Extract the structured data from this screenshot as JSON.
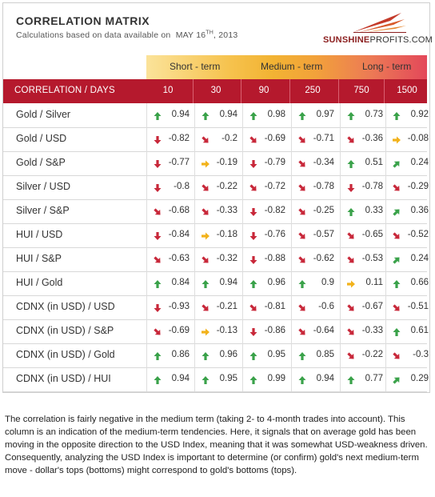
{
  "header": {
    "title": "CORRELATION MATRIX",
    "subtitle_prefix": "Calculations based on data available on",
    "date_month_day": "MAY 16",
    "date_suffix": "TH",
    "date_year": ", 2013"
  },
  "logo": {
    "brand_bold": "SUNSHINE",
    "brand_thin": "PROFITS.COM"
  },
  "terms": {
    "short": "Short - term",
    "medium": "Medium - term",
    "long": "Long - term"
  },
  "columns": {
    "label": "CORRELATION / DAYS",
    "days": [
      "10",
      "30",
      "90",
      "250",
      "750",
      "1500"
    ]
  },
  "colors": {
    "up": "#3aa24a",
    "down": "#c8283a",
    "flat": "#f2b21b",
    "header_bg": "#b5192d"
  },
  "chart_data": {
    "type": "table",
    "title": "CORRELATION MATRIX",
    "columns": [
      "10",
      "30",
      "90",
      "250",
      "750",
      "1500"
    ],
    "rows": [
      {
        "label": "Gold / Silver",
        "values": [
          "0.94",
          "0.94",
          "0.98",
          "0.97",
          "0.73",
          "0.92"
        ],
        "arrows": [
          "up",
          "up",
          "up",
          "up",
          "up",
          "up"
        ]
      },
      {
        "label": "Gold / USD",
        "values": [
          "-0.82",
          "-0.2",
          "-0.69",
          "-0.71",
          "-0.36",
          "-0.08"
        ],
        "arrows": [
          "down",
          "down-right",
          "down-right",
          "down-right",
          "down-right",
          "flat"
        ]
      },
      {
        "label": "Gold / S&P",
        "values": [
          "-0.77",
          "-0.19",
          "-0.79",
          "-0.34",
          "0.51",
          "0.24"
        ],
        "arrows": [
          "down",
          "flat",
          "down",
          "down-right",
          "up",
          "up-right"
        ]
      },
      {
        "label": "Silver / USD",
        "values": [
          "-0.8",
          "-0.22",
          "-0.72",
          "-0.78",
          "-0.78",
          "-0.29"
        ],
        "arrows": [
          "down",
          "down-right",
          "down-right",
          "down-right",
          "down",
          "down-right"
        ]
      },
      {
        "label": "Silver / S&P",
        "values": [
          "-0.68",
          "-0.33",
          "-0.82",
          "-0.25",
          "0.33",
          "0.36"
        ],
        "arrows": [
          "down-right",
          "down-right",
          "down",
          "down-right",
          "up",
          "up-right"
        ]
      },
      {
        "label": "HUI / USD",
        "values": [
          "-0.84",
          "-0.18",
          "-0.76",
          "-0.57",
          "-0.65",
          "-0.52"
        ],
        "arrows": [
          "down",
          "flat",
          "down",
          "down-right",
          "down-right",
          "down-right"
        ]
      },
      {
        "label": "HUI / S&P",
        "values": [
          "-0.63",
          "-0.32",
          "-0.88",
          "-0.62",
          "-0.53",
          "0.24"
        ],
        "arrows": [
          "down-right",
          "down-right",
          "down",
          "down-right",
          "down-right",
          "up-right"
        ]
      },
      {
        "label": "HUI / Gold",
        "values": [
          "0.84",
          "0.94",
          "0.96",
          "0.9",
          "0.11",
          "0.66"
        ],
        "arrows": [
          "up",
          "up",
          "up",
          "up",
          "flat",
          "up"
        ]
      },
      {
        "label": "CDNX (in USD) / USD",
        "values": [
          "-0.93",
          "-0.21",
          "-0.81",
          "-0.6",
          "-0.67",
          "-0.51"
        ],
        "arrows": [
          "down",
          "down-right",
          "down-right",
          "down-right",
          "down-right",
          "down-right"
        ]
      },
      {
        "label": "CDNX (in USD) / S&P",
        "values": [
          "-0.69",
          "-0.13",
          "-0.86",
          "-0.64",
          "-0.33",
          "0.61"
        ],
        "arrows": [
          "down-right",
          "flat",
          "down",
          "down-right",
          "down-right",
          "up"
        ]
      },
      {
        "label": "CDNX (in USD) / Gold",
        "values": [
          "0.86",
          "0.96",
          "0.95",
          "0.85",
          "-0.22",
          "-0.3"
        ],
        "arrows": [
          "up",
          "up",
          "up",
          "up",
          "down-right",
          "down-right"
        ]
      },
      {
        "label": "CDNX (in USD) / HUI",
        "values": [
          "0.94",
          "0.95",
          "0.99",
          "0.94",
          "0.77",
          "0.29"
        ],
        "arrows": [
          "up",
          "up",
          "up",
          "up",
          "up",
          "up-right"
        ]
      }
    ]
  },
  "note": "The correlation is fairly negative in the medium term (taking 2- to 4-month trades into account). This column is an indication of the medium-term tendencies. Here, it signals that on average gold has been moving in the opposite direction to the USD Index, meaning that it was somewhat USD-weakness driven. Consequently, analyzing the USD Index is important to determine (or confirm) gold's next medium-term move - dollar's tops (bottoms) might correspond to gold's bottoms (tops)."
}
